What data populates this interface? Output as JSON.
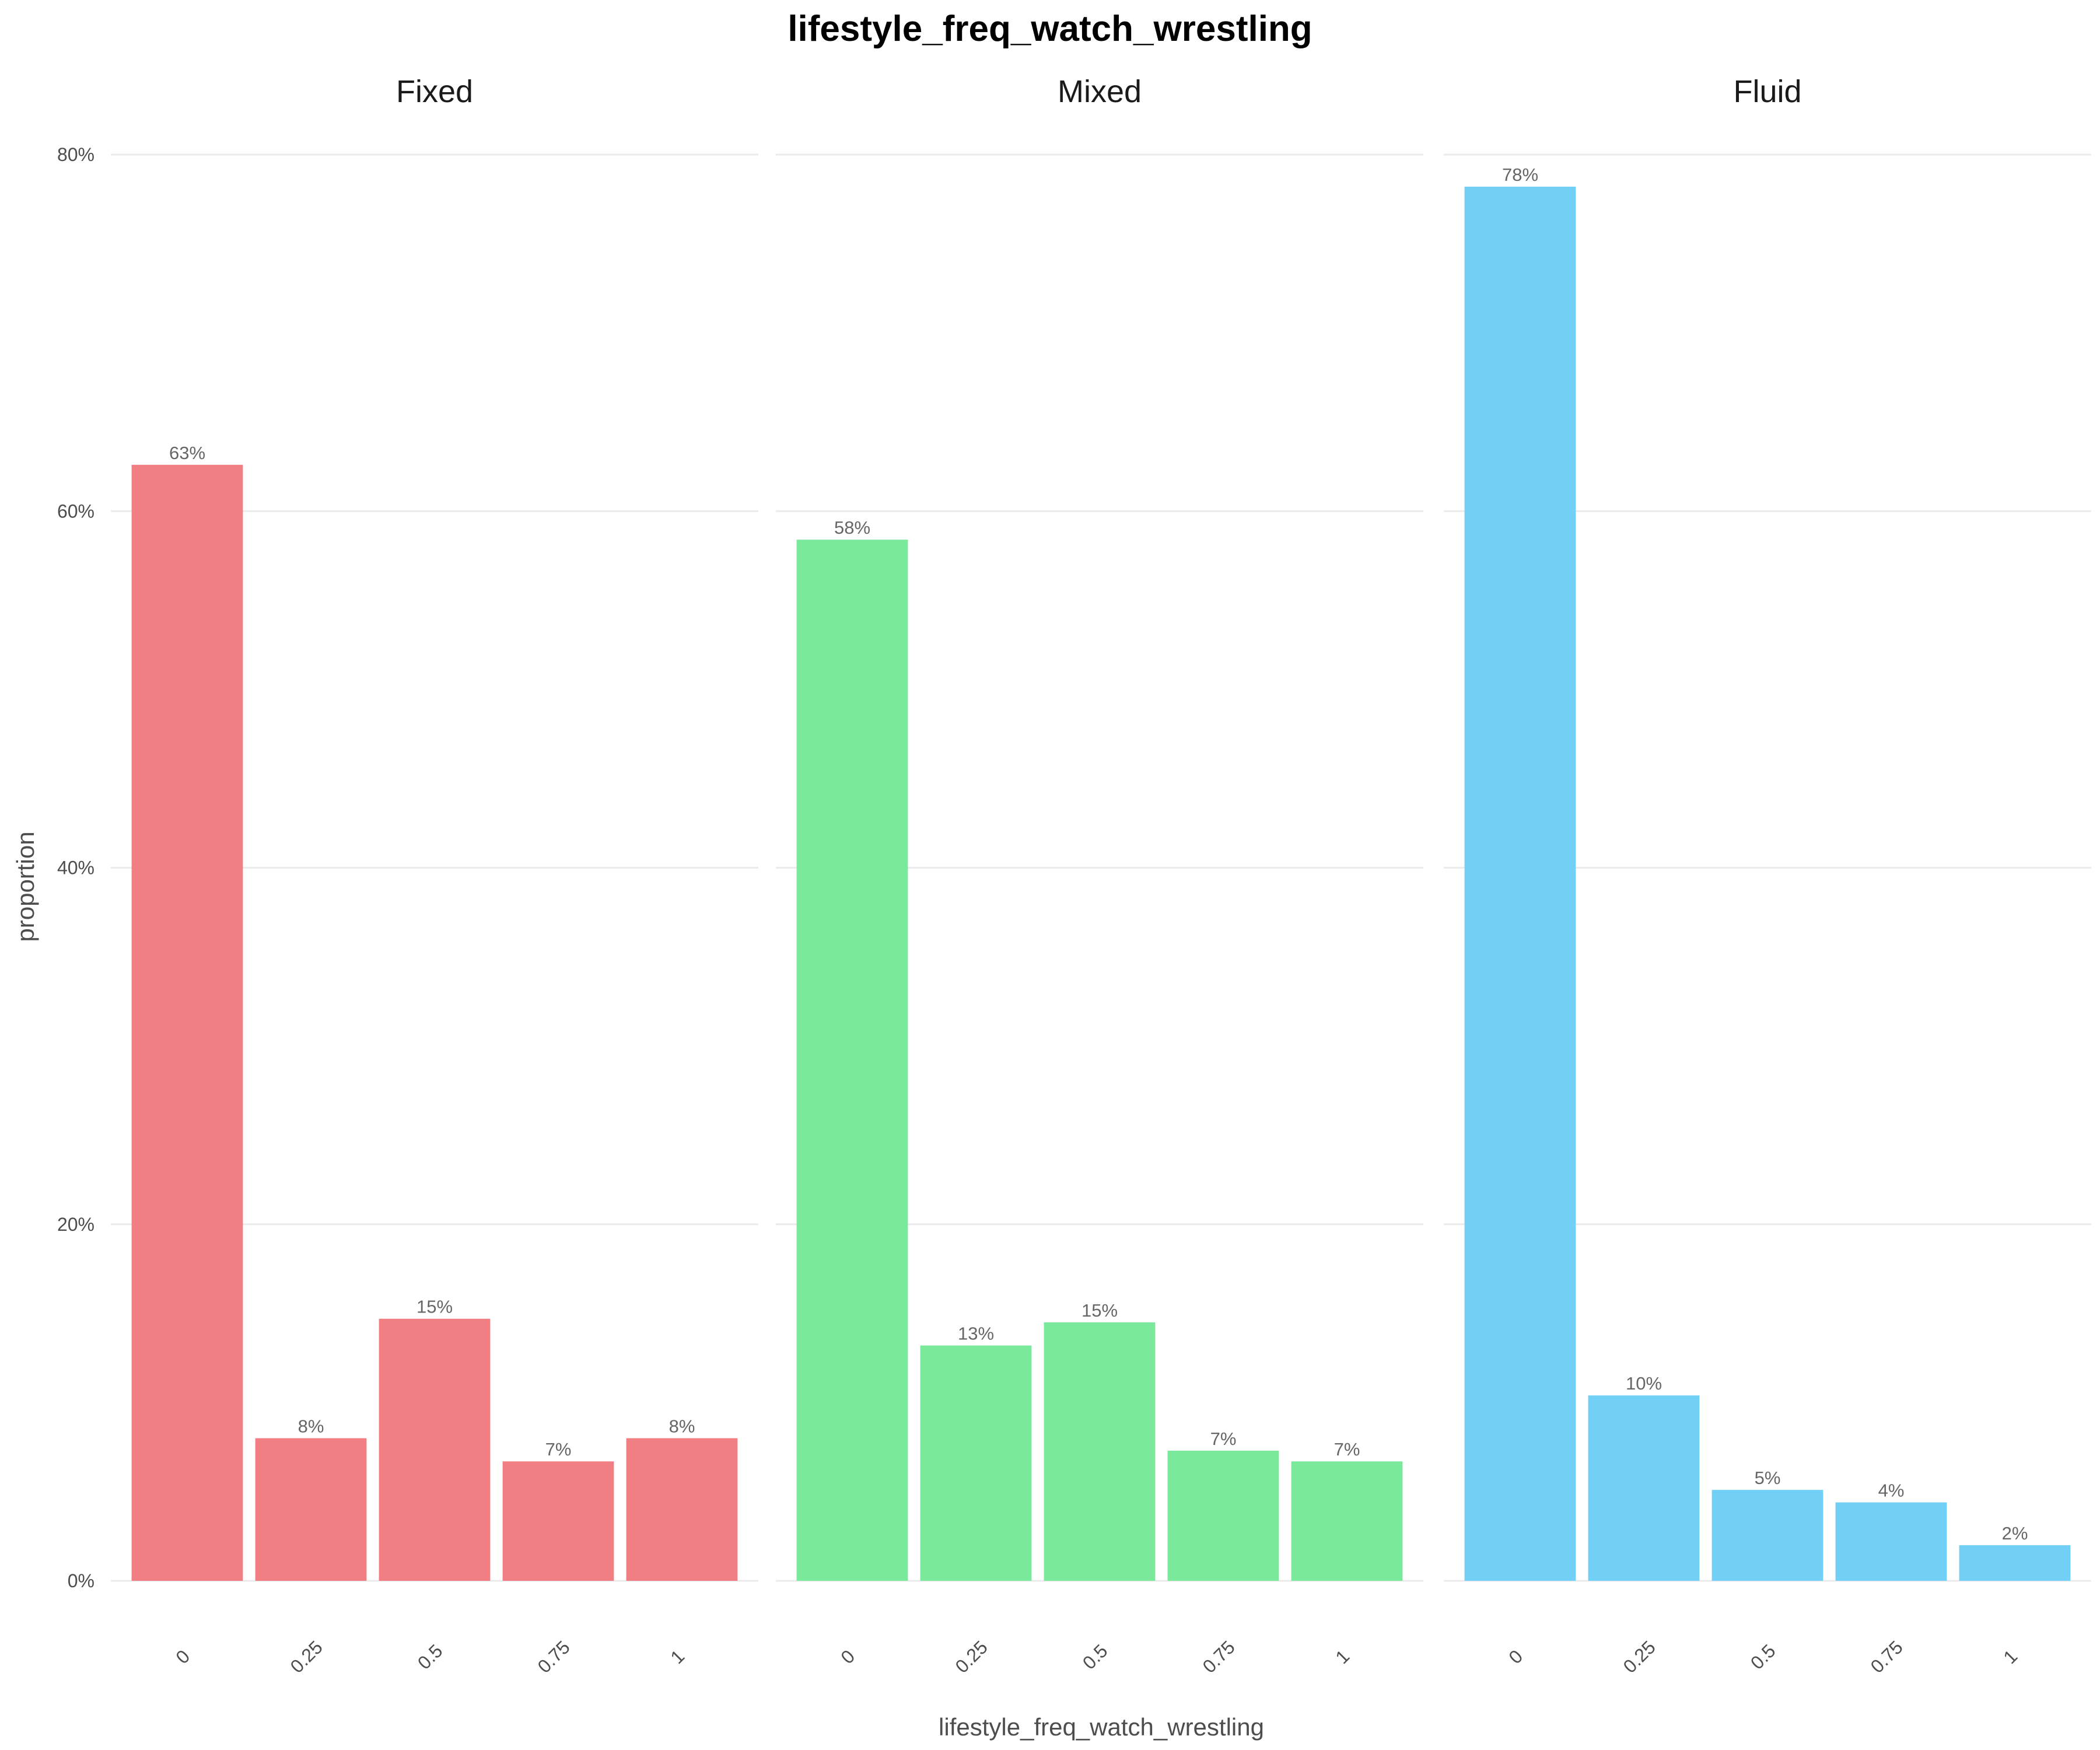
{
  "chart_data": {
    "type": "bar",
    "title": "lifestyle_freq_watch_wrestling",
    "xlabel": "lifestyle_freq_watch_wrestling",
    "ylabel": "proportion",
    "categories": [
      "0",
      "0.25",
      "0.5",
      "0.75",
      "1"
    ],
    "ylim": [
      0,
      0.8
    ],
    "yticks": [
      0,
      0.2,
      0.4,
      0.6,
      0.8
    ],
    "ytick_labels": [
      "0%",
      "20%",
      "40%",
      "60%",
      "80%"
    ],
    "grid": true,
    "facets": [
      {
        "name": "Fixed",
        "color": "#F07E82",
        "values": [
          0.626,
          0.08,
          0.147,
          0.067,
          0.08
        ],
        "labels": [
          "63%",
          "8%",
          "15%",
          "7%",
          "8%"
        ]
      },
      {
        "name": "Mixed",
        "color": "#7BE99C",
        "values": [
          0.584,
          0.132,
          0.145,
          0.073,
          0.067
        ],
        "labels": [
          "58%",
          "13%",
          "15%",
          "7%",
          "7%"
        ]
      },
      {
        "name": "Fluid",
        "color": "#72D0F6",
        "values": [
          0.782,
          0.104,
          0.051,
          0.044,
          0.02
        ],
        "labels": [
          "78%",
          "10%",
          "5%",
          "4%",
          "2%"
        ]
      }
    ]
  }
}
